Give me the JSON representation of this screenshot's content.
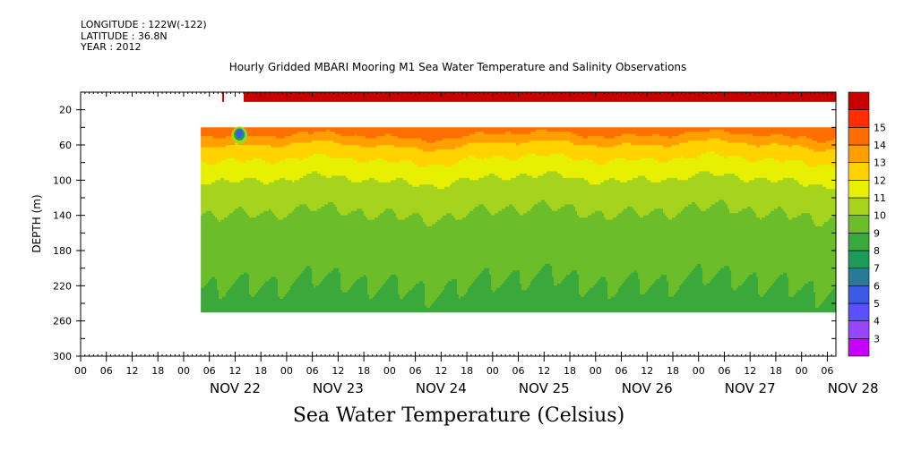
{
  "header": {
    "longitude": "LONGITUDE : 122W(-122)",
    "latitude": "LATITUDE : 36.8N",
    "year": "YEAR : 2012"
  },
  "chart_data": {
    "type": "heatmap",
    "title": "Hourly Gridded MBARI Mooring M1 Sea Water Temperature and Salinity Observations",
    "xlabel": "Sea Water Temperature (Celsius)",
    "ylabel": "DEPTH (m)",
    "y_axis": {
      "inverted": true,
      "ylim": [
        0,
        300
      ],
      "ticks": [
        20,
        60,
        100,
        140,
        180,
        220,
        260,
        300
      ]
    },
    "x_axis": {
      "hour_ticks": [
        "00",
        "06",
        "12",
        "18",
        "00",
        "06",
        "12",
        "18",
        "00",
        "06",
        "12",
        "18",
        "00",
        "06",
        "12",
        "18",
        "00",
        "06",
        "12",
        "18",
        "00",
        "06",
        "12",
        "18",
        "00",
        "06",
        "12",
        "18",
        "00",
        "06",
        "12",
        "18"
      ],
      "days": [
        "NOV 22",
        "NOV 23",
        "NOV 24",
        "NOV 25",
        "NOV 26",
        "NOV 27",
        "NOV 28"
      ]
    },
    "colorbar": {
      "levels": [
        3,
        4,
        5,
        6,
        7,
        8,
        9,
        10,
        11,
        12,
        13,
        14,
        15
      ],
      "colors": [
        "#c800ff",
        "#9646ff",
        "#5a50ff",
        "#3c5ae6",
        "#287a96",
        "#1e9a5a",
        "#3aa83a",
        "#6cbd2a",
        "#a6d41e",
        "#e6f000",
        "#ffd200",
        "#ffa000",
        "#ff6e00",
        "#ff2d00",
        "#c80000"
      ]
    },
    "profile": [
      {
        "depth": 10,
        "value": 15.0
      },
      {
        "depth": 40,
        "value": 14.6
      },
      {
        "depth": 50,
        "value": 13.8
      },
      {
        "depth": 60,
        "value": 12.8
      },
      {
        "depth": 75,
        "value": 12.0
      },
      {
        "depth": 90,
        "value": 11.3
      },
      {
        "depth": 105,
        "value": 10.7
      },
      {
        "depth": 120,
        "value": 10.3
      },
      {
        "depth": 140,
        "value": 9.9
      },
      {
        "depth": 160,
        "value": 9.6
      },
      {
        "depth": 180,
        "value": 9.35
      },
      {
        "depth": 200,
        "value": 9.15
      },
      {
        "depth": 220,
        "value": 8.95
      },
      {
        "depth": 240,
        "value": 8.8
      },
      {
        "depth": 250,
        "value": 8.7
      }
    ],
    "data_range": {
      "depth_top": 40,
      "depth_bottom": 250,
      "surface_band_depth": [
        0,
        10
      ]
    },
    "anomaly": {
      "time": "NOV 22 13:00",
      "depth_top": 40,
      "depth_bottom": 58,
      "value": 5
    }
  }
}
